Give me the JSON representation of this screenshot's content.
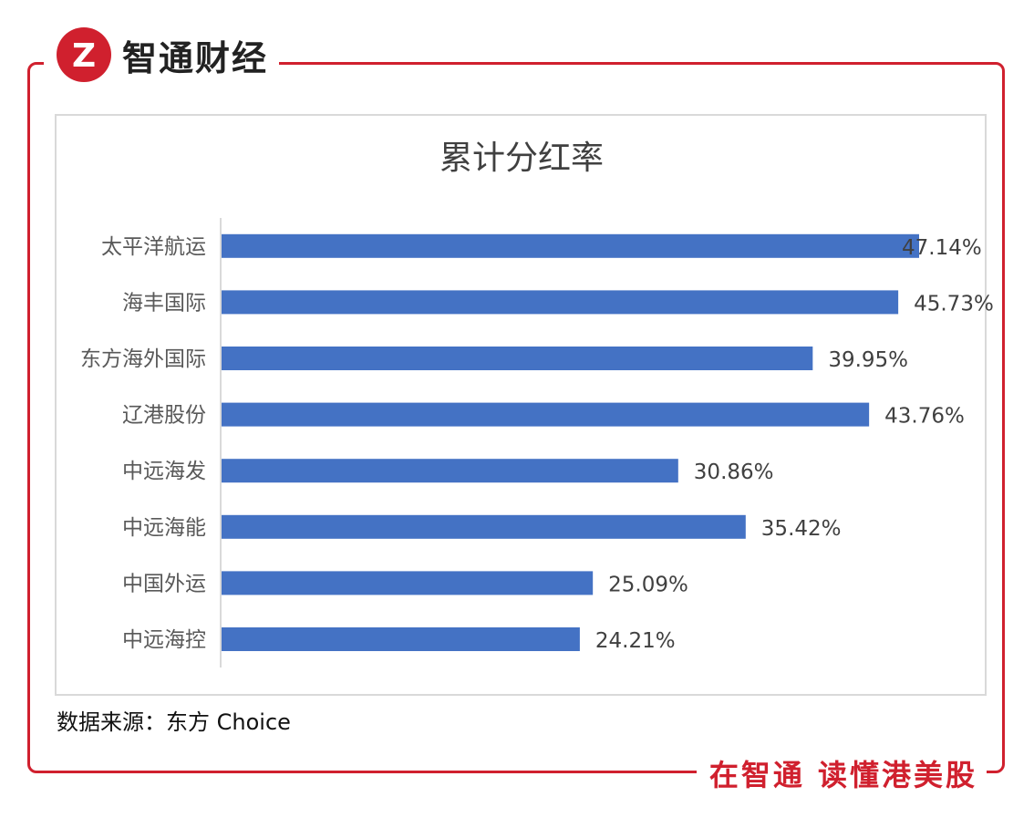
{
  "header": {
    "brand_name": "智通财经",
    "logo_mark": "Z"
  },
  "footer": {
    "slogan": "在智通 读懂港美股"
  },
  "source_note": "数据来源：东方 Choice",
  "colors": {
    "accent_red": "#d0202e",
    "bar_blue": "#4472c4",
    "axis_grey": "#d9d9d9"
  },
  "chart_data": {
    "type": "bar",
    "orientation": "horizontal",
    "title": "累计分红率",
    "categories": [
      "太平洋航运",
      "海丰国际",
      "东方海外国际",
      "辽港股份",
      "中远海发",
      "中远海能",
      "中国外运",
      "中远海控"
    ],
    "values": [
      47.14,
      45.73,
      39.95,
      43.76,
      30.86,
      35.42,
      25.09,
      24.21
    ],
    "data_labels": [
      "47.14%",
      "45.73%",
      "39.95%",
      "43.76%",
      "30.86%",
      "35.42%",
      "25.09%",
      "24.21%"
    ],
    "value_unit": "%",
    "xlim": [
      0,
      47.14
    ],
    "xlabel": "",
    "ylabel": "",
    "grid": false,
    "legend": "none"
  }
}
